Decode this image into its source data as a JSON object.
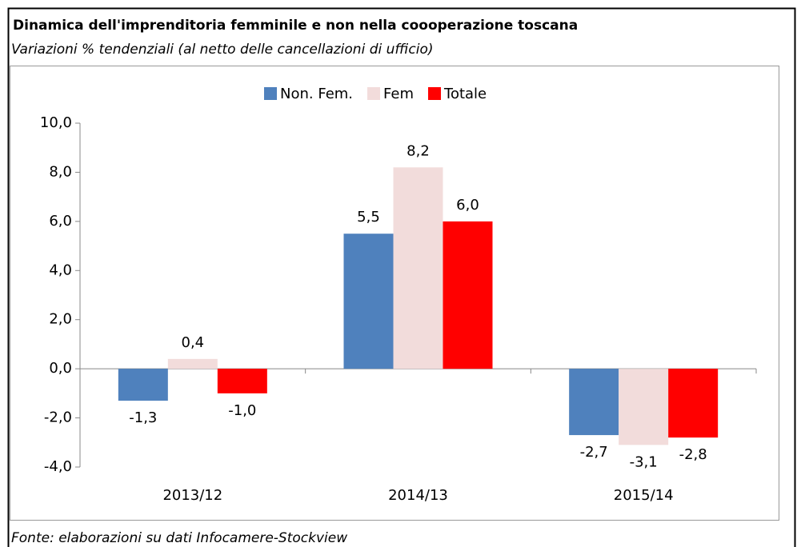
{
  "chart_data": {
    "type": "bar",
    "title": "Dinamica dell'imprenditoria femminile e non nella coooperazione toscana",
    "subtitle": "Variazioni % tendenziali (al netto delle cancellazioni di ufficio)",
    "source": "Fonte: elaborazioni su dati Infocamere-Stockview",
    "categories": [
      "2013/12",
      "2014/13",
      "2015/14"
    ],
    "series": [
      {
        "name": "Non. Fem.",
        "color": "#4f81bd",
        "values": [
          -1.3,
          5.5,
          -2.7
        ],
        "value_labels": [
          "-1,3",
          "5,5",
          "-2,7"
        ]
      },
      {
        "name": "Fem",
        "color": "#f2dcdb",
        "values": [
          0.4,
          8.2,
          -3.1
        ],
        "value_labels": [
          "0,4",
          "8,2",
          "-3,1"
        ]
      },
      {
        "name": "Totale",
        "color": "#ff0000",
        "values": [
          -1.0,
          6.0,
          -2.8
        ],
        "value_labels": [
          "-1,0",
          "6,0",
          "-2,8"
        ]
      }
    ],
    "ylim": [
      -4,
      10
    ],
    "yticks": [
      {
        "value": -4,
        "label": "-4,0"
      },
      {
        "value": -2,
        "label": "-2,0"
      },
      {
        "value": 0,
        "label": "0,0"
      },
      {
        "value": 2,
        "label": "2,0"
      },
      {
        "value": 4,
        "label": "4,0"
      },
      {
        "value": 6,
        "label": "6,0"
      },
      {
        "value": 8,
        "label": "8,0"
      },
      {
        "value": 10,
        "label": "10,0"
      }
    ],
    "legend": "top",
    "grid": false
  }
}
